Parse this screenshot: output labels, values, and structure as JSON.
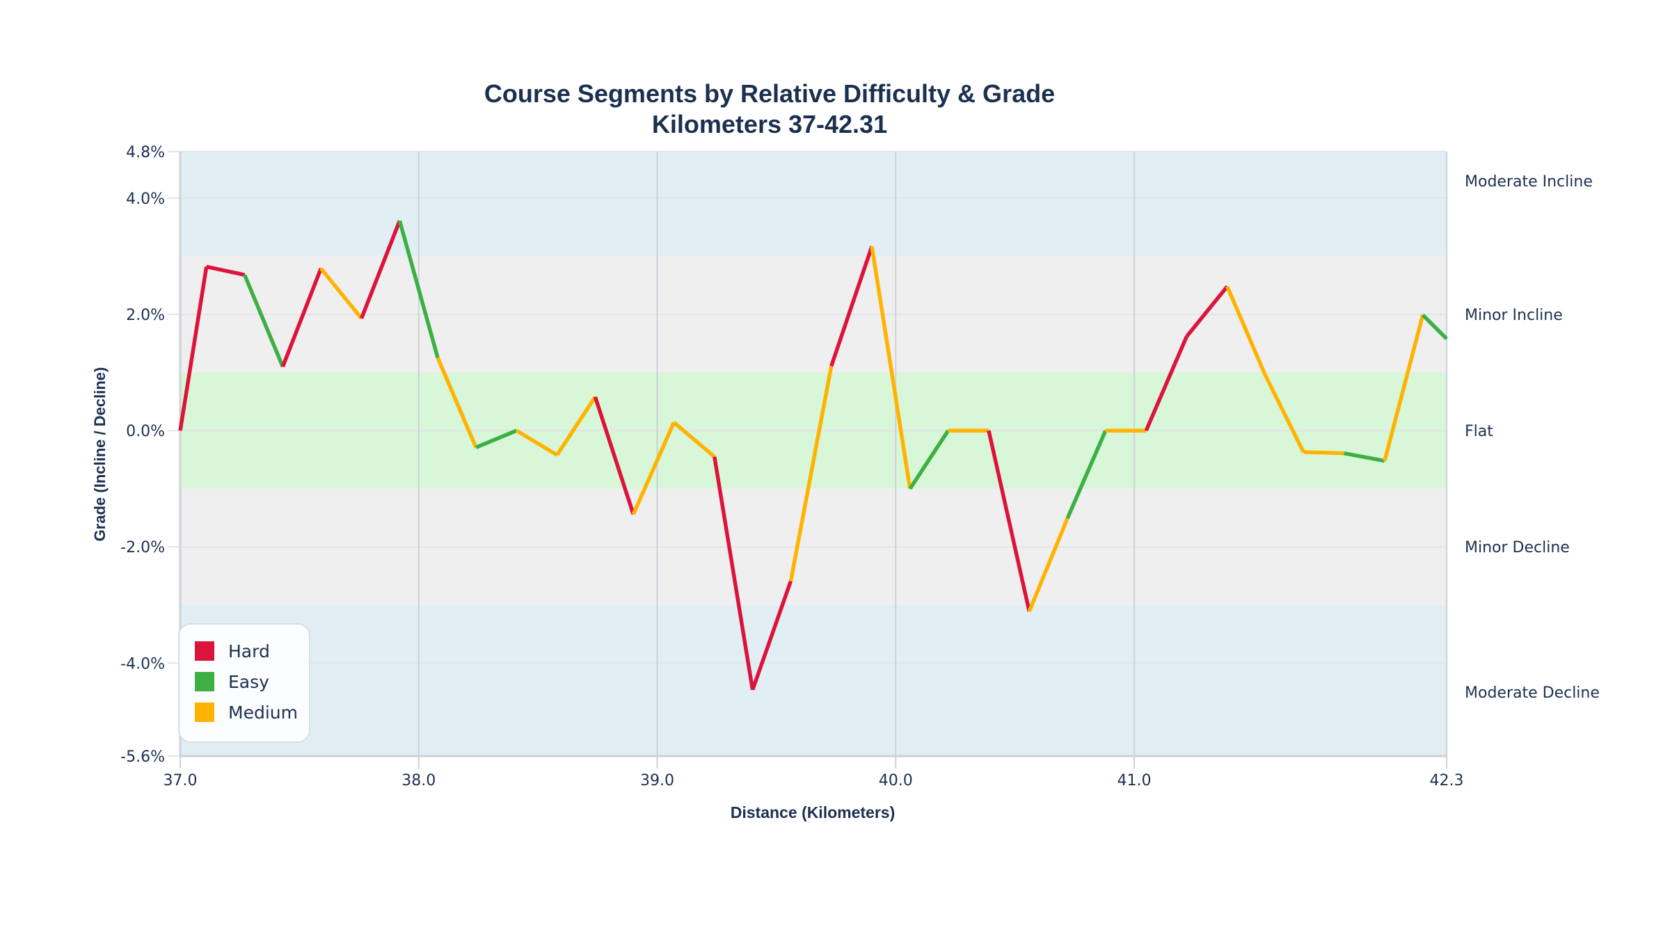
{
  "title": {
    "line1": "Course Segments by Relative Difficulty & Grade",
    "line2": "Kilometers 37-42.31"
  },
  "colors": {
    "hard": "#DC143C",
    "easy": "#3CB043",
    "medium": "#FFB300",
    "band_moderate": "#E1EFF5",
    "band_minor": "#EFEFEF",
    "band_flat": "#D8F7D8",
    "text": "#1B3050",
    "grid": "#E2E4E8",
    "axis": "#CDD1D8"
  },
  "legend": {
    "items": [
      {
        "label": "Hard",
        "key": "hard"
      },
      {
        "label": "Easy",
        "key": "easy"
      },
      {
        "label": "Medium",
        "key": "medium"
      }
    ]
  },
  "chart_data": {
    "type": "line",
    "title": "Course Segments by Relative Difficulty & Grade",
    "subtitle": "Kilometers 37-42.31",
    "xlabel": "Distance (Kilometers)",
    "ylabel": "Grade (Incline / Decline)",
    "xlim": [
      37.0,
      42.31
    ],
    "ylim": [
      -5.6,
      4.8
    ],
    "x_ticks": [
      "37.0",
      "38.0",
      "39.0",
      "40.0",
      "41.0",
      "42.3"
    ],
    "x_tick_values": [
      37.0,
      38.0,
      39.0,
      40.0,
      41.0,
      42.31
    ],
    "y_ticks": [
      "4.8%",
      "4.0%",
      "2.0%",
      "0.0%",
      "-2.0%",
      "-4.0%",
      "-5.6%"
    ],
    "y_tick_values": [
      4.8,
      4.0,
      2.0,
      0.0,
      -2.0,
      -4.0,
      -5.6
    ],
    "grid": true,
    "legend_position": "bottom-left",
    "bands": [
      {
        "label": "Moderate Incline",
        "from": 3.0,
        "to": 4.8,
        "label_y": 4.3,
        "color_key": "band_moderate"
      },
      {
        "label": "Minor Incline",
        "from": 1.0,
        "to": 3.0,
        "label_y": 2.0,
        "color_key": "band_minor"
      },
      {
        "label": "Flat",
        "from": -1.0,
        "to": 1.0,
        "label_y": 0.0,
        "color_key": "band_flat"
      },
      {
        "label": "Minor Decline",
        "from": -3.0,
        "to": -1.0,
        "label_y": -2.0,
        "color_key": "band_minor"
      },
      {
        "label": "Moderate Decline",
        "from": -5.6,
        "to": -3.0,
        "label_y": -4.5,
        "color_key": "band_moderate"
      }
    ],
    "points": [
      {
        "km": 37.0,
        "grade": 0.0
      },
      {
        "km": 37.11,
        "grade": 2.82
      },
      {
        "km": 37.27,
        "grade": 2.68
      },
      {
        "km": 37.43,
        "grade": 1.1
      },
      {
        "km": 37.59,
        "grade": 2.79
      },
      {
        "km": 37.76,
        "grade": 1.93
      },
      {
        "km": 37.92,
        "grade": 3.61
      },
      {
        "km": 38.08,
        "grade": 1.25
      },
      {
        "km": 38.24,
        "grade": -0.29
      },
      {
        "km": 38.41,
        "grade": 0.0
      },
      {
        "km": 38.58,
        "grade": -0.42
      },
      {
        "km": 38.74,
        "grade": 0.58
      },
      {
        "km": 38.9,
        "grade": -1.44
      },
      {
        "km": 39.07,
        "grade": 0.14
      },
      {
        "km": 39.24,
        "grade": -0.45
      },
      {
        "km": 39.4,
        "grade": -4.46
      },
      {
        "km": 39.56,
        "grade": -2.59
      },
      {
        "km": 39.73,
        "grade": 1.11
      },
      {
        "km": 39.9,
        "grade": 3.17
      },
      {
        "km": 40.06,
        "grade": -1.0
      },
      {
        "km": 40.22,
        "grade": 0.0
      },
      {
        "km": 40.39,
        "grade": 0.0
      },
      {
        "km": 40.56,
        "grade": -3.11
      },
      {
        "km": 40.72,
        "grade": -1.51
      },
      {
        "km": 40.88,
        "grade": 0.0
      },
      {
        "km": 41.05,
        "grade": 0.0
      },
      {
        "km": 41.22,
        "grade": 1.62
      },
      {
        "km": 41.39,
        "grade": 2.48
      },
      {
        "km": 41.55,
        "grade": 0.95
      },
      {
        "km": 41.71,
        "grade": -0.37
      },
      {
        "km": 41.88,
        "grade": -0.39
      },
      {
        "km": 42.05,
        "grade": -0.52
      },
      {
        "km": 42.21,
        "grade": 1.99
      },
      {
        "km": 42.31,
        "grade": 1.58
      }
    ],
    "segment_difficulty": [
      "hard",
      "hard",
      "easy",
      "hard",
      "medium",
      "hard",
      "easy",
      "medium",
      "easy",
      "medium",
      "medium",
      "hard",
      "medium",
      "medium",
      "hard",
      "hard",
      "medium",
      "hard",
      "medium",
      "easy",
      "medium",
      "hard",
      "medium",
      "easy",
      "medium",
      "hard",
      "hard",
      "medium",
      "medium",
      "medium",
      "easy",
      "medium",
      "easy"
    ],
    "series": [
      {
        "name": "Hard",
        "color": "#DC143C"
      },
      {
        "name": "Easy",
        "color": "#3CB043"
      },
      {
        "name": "Medium",
        "color": "#FFB300"
      }
    ]
  }
}
